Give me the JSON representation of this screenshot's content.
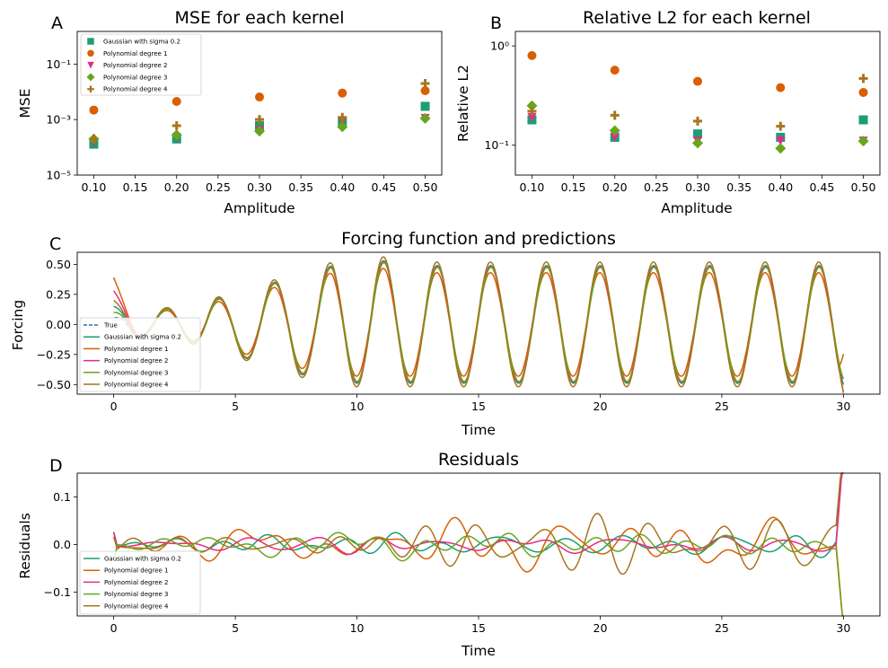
{
  "colors": {
    "gaussian": "#1b9e77",
    "poly1": "#d95f02",
    "poly2": "#e7298a",
    "poly3": "#66a61e",
    "poly4": "#a6761d",
    "true": "#1f77b4"
  },
  "chart_data": [
    {
      "panel": "A",
      "type": "scatter",
      "title": "MSE for each kernel",
      "xlabel": "Amplitude",
      "ylabel": "MSE",
      "yscale": "log",
      "xlim": [
        0.08,
        0.52
      ],
      "ylim": [
        1e-05,
        1.5
      ],
      "xticks": [
        0.1,
        0.15,
        0.2,
        0.25,
        0.3,
        0.35,
        0.4,
        0.45,
        0.5
      ],
      "xtick_labels": [
        "0.10",
        "0.15",
        "0.20",
        "0.25",
        "0.30",
        "0.35",
        "0.40",
        "0.45",
        "0.50"
      ],
      "yticks": [
        1e-05,
        0.001,
        0.1
      ],
      "ytick_labels": [
        "10⁻⁵",
        "10⁻³",
        "10⁻¹"
      ],
      "legend_position": "top-left",
      "x": [
        0.1,
        0.2,
        0.3,
        0.4,
        0.5
      ],
      "series": [
        {
          "name": "Gaussian with sigma 0.2",
          "marker": "square",
          "color_key": "gaussian",
          "values": [
            0.00013,
            0.0002,
            0.0006,
            0.0009,
            0.003
          ]
        },
        {
          "name": "Polynomial degree 1",
          "marker": "circle",
          "color_key": "poly1",
          "values": [
            0.0022,
            0.0045,
            0.0065,
            0.009,
            0.011
          ]
        },
        {
          "name": "Polynomial degree 2",
          "marker": "triangle-down",
          "color_key": "poly2",
          "values": [
            0.00015,
            0.00022,
            0.0004,
            0.0009,
            0.0011
          ]
        },
        {
          "name": "Polynomial degree 3",
          "marker": "diamond",
          "color_key": "poly3",
          "values": [
            0.0002,
            0.00028,
            0.00038,
            0.00055,
            0.0011
          ]
        },
        {
          "name": "Polynomial degree 4",
          "marker": "plus",
          "color_key": "poly4",
          "values": [
            0.0002,
            0.0006,
            0.001,
            0.0012,
            0.02
          ]
        }
      ]
    },
    {
      "panel": "B",
      "type": "scatter",
      "title": "Relative L2 for each kernel",
      "xlabel": "Amplitude",
      "ylabel": "Relative L2",
      "yscale": "log",
      "xlim": [
        0.08,
        0.52
      ],
      "ylim": [
        0.05,
        1.4
      ],
      "xticks": [
        0.1,
        0.15,
        0.2,
        0.25,
        0.3,
        0.35,
        0.4,
        0.45,
        0.5
      ],
      "xtick_labels": [
        "0.10",
        "0.15",
        "0.20",
        "0.25",
        "0.30",
        "0.35",
        "0.40",
        "0.45",
        "0.50"
      ],
      "yticks": [
        0.1,
        1
      ],
      "ytick_labels": [
        "10⁻¹",
        "10⁰"
      ],
      "x": [
        0.1,
        0.2,
        0.3,
        0.4,
        0.5
      ],
      "series": [
        {
          "color_key": "gaussian",
          "marker": "square",
          "values": [
            0.18,
            0.12,
            0.13,
            0.12,
            0.18
          ]
        },
        {
          "color_key": "poly1",
          "marker": "circle",
          "values": [
            0.8,
            0.57,
            0.44,
            0.38,
            0.34
          ]
        },
        {
          "color_key": "poly2",
          "marker": "triangle-down",
          "values": [
            0.19,
            0.12,
            0.11,
            0.11,
            0.11
          ]
        },
        {
          "color_key": "poly3",
          "marker": "diamond",
          "values": [
            0.25,
            0.14,
            0.105,
            0.093,
            0.11
          ]
        },
        {
          "color_key": "poly4",
          "marker": "plus",
          "values": [
            0.22,
            0.2,
            0.175,
            0.155,
            0.47
          ]
        }
      ]
    },
    {
      "panel": "C",
      "type": "line",
      "title": "Forcing function and predictions",
      "xlabel": "Time",
      "ylabel": "Forcing",
      "xlim": [
        -1.5,
        31.5
      ],
      "ylim": [
        -0.58,
        0.6
      ],
      "xticks": [
        0,
        5,
        10,
        15,
        20,
        25,
        30
      ],
      "xtick_labels": [
        "0",
        "5",
        "10",
        "15",
        "20",
        "25",
        "30"
      ],
      "yticks": [
        -0.5,
        -0.25,
        0.0,
        0.25,
        0.5
      ],
      "ytick_labels": [
        "−0.50",
        "−0.25",
        "0.00",
        "0.25",
        "0.50"
      ],
      "legend_position": "lower-left",
      "signal": {
        "kind": "chirp",
        "peak_times": [
          2.2,
          4.3,
          6.6,
          8.9,
          11.1,
          13.3,
          15.5,
          17.8,
          20.0,
          22.2,
          24.5,
          26.8,
          29.0
        ],
        "amplitude_settled": 0.49
      },
      "series": [
        {
          "name": "True",
          "color_key": "true",
          "dashed": true,
          "amp_scale": 1.0,
          "phase": 0.0,
          "start": 0.05
        },
        {
          "name": "Gaussian with sigma 0.2",
          "color_key": "gaussian",
          "amp_scale": 1.0,
          "phase": 0.0,
          "start": 0.15
        },
        {
          "name": "Polynomial degree 1",
          "color_key": "poly1",
          "amp_scale": 0.88,
          "phase": 0.05,
          "start": 0.39
        },
        {
          "name": "Polynomial degree 2",
          "color_key": "poly2",
          "amp_scale": 0.98,
          "phase": 0.02,
          "start": 0.28
        },
        {
          "name": "Polynomial degree 3",
          "color_key": "poly3",
          "amp_scale": 0.97,
          "phase": -0.03,
          "start": 0.1
        },
        {
          "name": "Polynomial degree 4",
          "color_key": "poly4",
          "amp_scale": 1.06,
          "phase": 0.04,
          "start": 0.2
        }
      ]
    },
    {
      "panel": "D",
      "type": "line",
      "title": "Residuals",
      "xlabel": "Time",
      "ylabel": "Residuals",
      "xlim": [
        -1.5,
        31.5
      ],
      "ylim": [
        -0.15,
        0.15
      ],
      "xticks": [
        0,
        5,
        10,
        15,
        20,
        25,
        30
      ],
      "xtick_labels": [
        "0",
        "5",
        "10",
        "15",
        "20",
        "25",
        "30"
      ],
      "yticks": [
        -0.1,
        0.0,
        0.1
      ],
      "ytick_labels": [
        "−0.1",
        "0.0",
        "0.1"
      ],
      "legend_position": "lower-left",
      "series": [
        {
          "name": "Gaussian with sigma 0.2",
          "color_key": "gaussian",
          "amplitude": 0.022,
          "seed": 3
        },
        {
          "name": "Polynomial degree 1",
          "color_key": "poly1",
          "amplitude": 0.05,
          "seed": 7
        },
        {
          "name": "Polynomial degree 2",
          "color_key": "poly2",
          "amplitude": 0.018,
          "seed": 11
        },
        {
          "name": "Polynomial degree 3",
          "color_key": "poly3",
          "amplitude": 0.026,
          "seed": 17
        },
        {
          "name": "Polynomial degree 4",
          "color_key": "poly4",
          "amplitude": 0.045,
          "seed": 23
        }
      ]
    }
  ]
}
